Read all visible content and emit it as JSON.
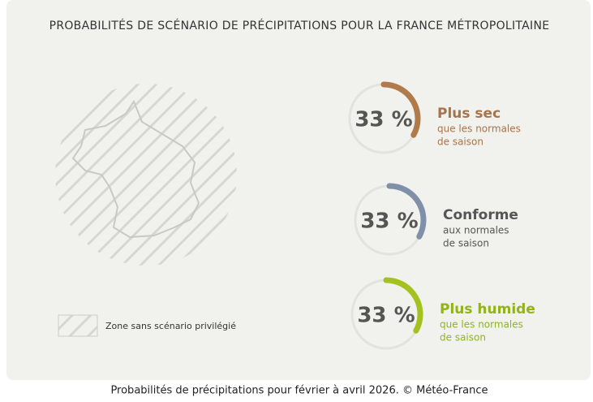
{
  "chart_data": {
    "type": "gauge",
    "title": "PROBABILITÉS DE SCÉNARIO DE PRÉCIPITATIONS POUR LA FRANCE MÉTROPOLITAINE",
    "ylim": [
      0,
      100
    ],
    "series": [
      {
        "name": "Plus sec",
        "color": "#b07a4a",
        "name_color": "#a8744a",
        "values": [
          33
        ],
        "value_labels": [
          "33 %"
        ],
        "description": [
          "que les normales",
          "de saison"
        ]
      },
      {
        "name": "Conforme",
        "color": "#8090a8",
        "name_color": "#555555",
        "values": [
          33
        ],
        "value_labels": [
          "33 %"
        ],
        "description": [
          "aux normales",
          "de saison"
        ]
      },
      {
        "name": "Plus humide",
        "color": "#a3c21f",
        "name_color": "#93b31a",
        "values": [
          33
        ],
        "value_labels": [
          "33 %"
        ],
        "description": [
          "que les normales",
          "de saison"
        ]
      }
    ],
    "legend_label": "Zone sans scénario privilégié",
    "caption": "Probabilités de précipitations pour février à avril 2026. © Météo-France"
  }
}
